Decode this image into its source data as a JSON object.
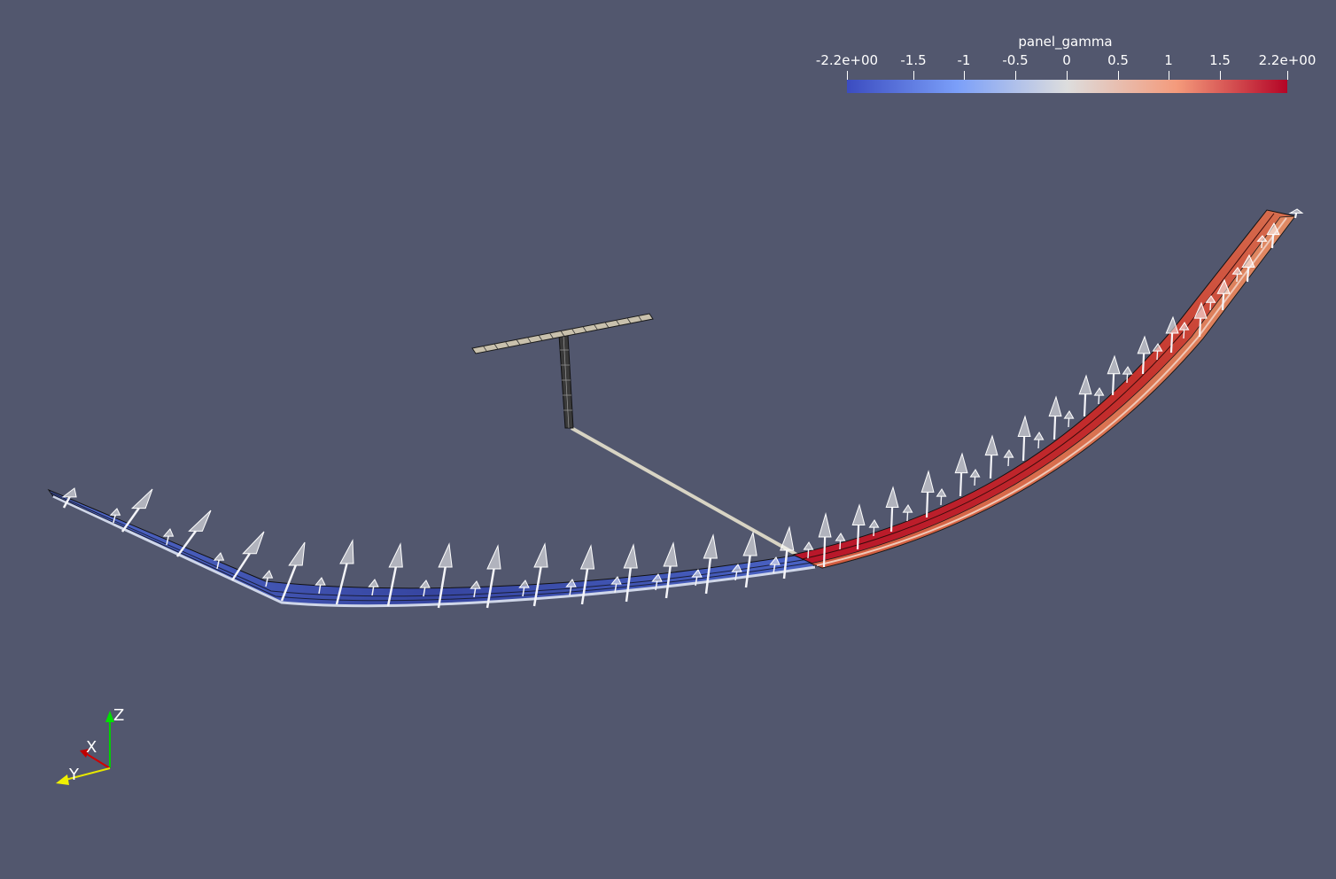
{
  "legend": {
    "title": "panel_gamma",
    "ticks": [
      "-2.2e+00",
      "-1.5",
      "-1",
      "-0.5",
      "0",
      "0.5",
      "1",
      "1.5",
      "2.2e+00"
    ],
    "range": [
      -2.2,
      2.2
    ],
    "colors": [
      "#3b4cc0",
      "#dddddd",
      "#b40426"
    ]
  },
  "orientation_axes": {
    "z_label": "Z",
    "x_label": "X",
    "y_label": "Y",
    "z_color": "#00d000",
    "x_color": "#d00000",
    "y_color": "#e6e600"
  },
  "scene": {
    "background": "#52576e",
    "negative_wing_color": "#3a4a9c",
    "positive_wing_color": "#c23a33",
    "arrow_color": "#ffffff"
  }
}
